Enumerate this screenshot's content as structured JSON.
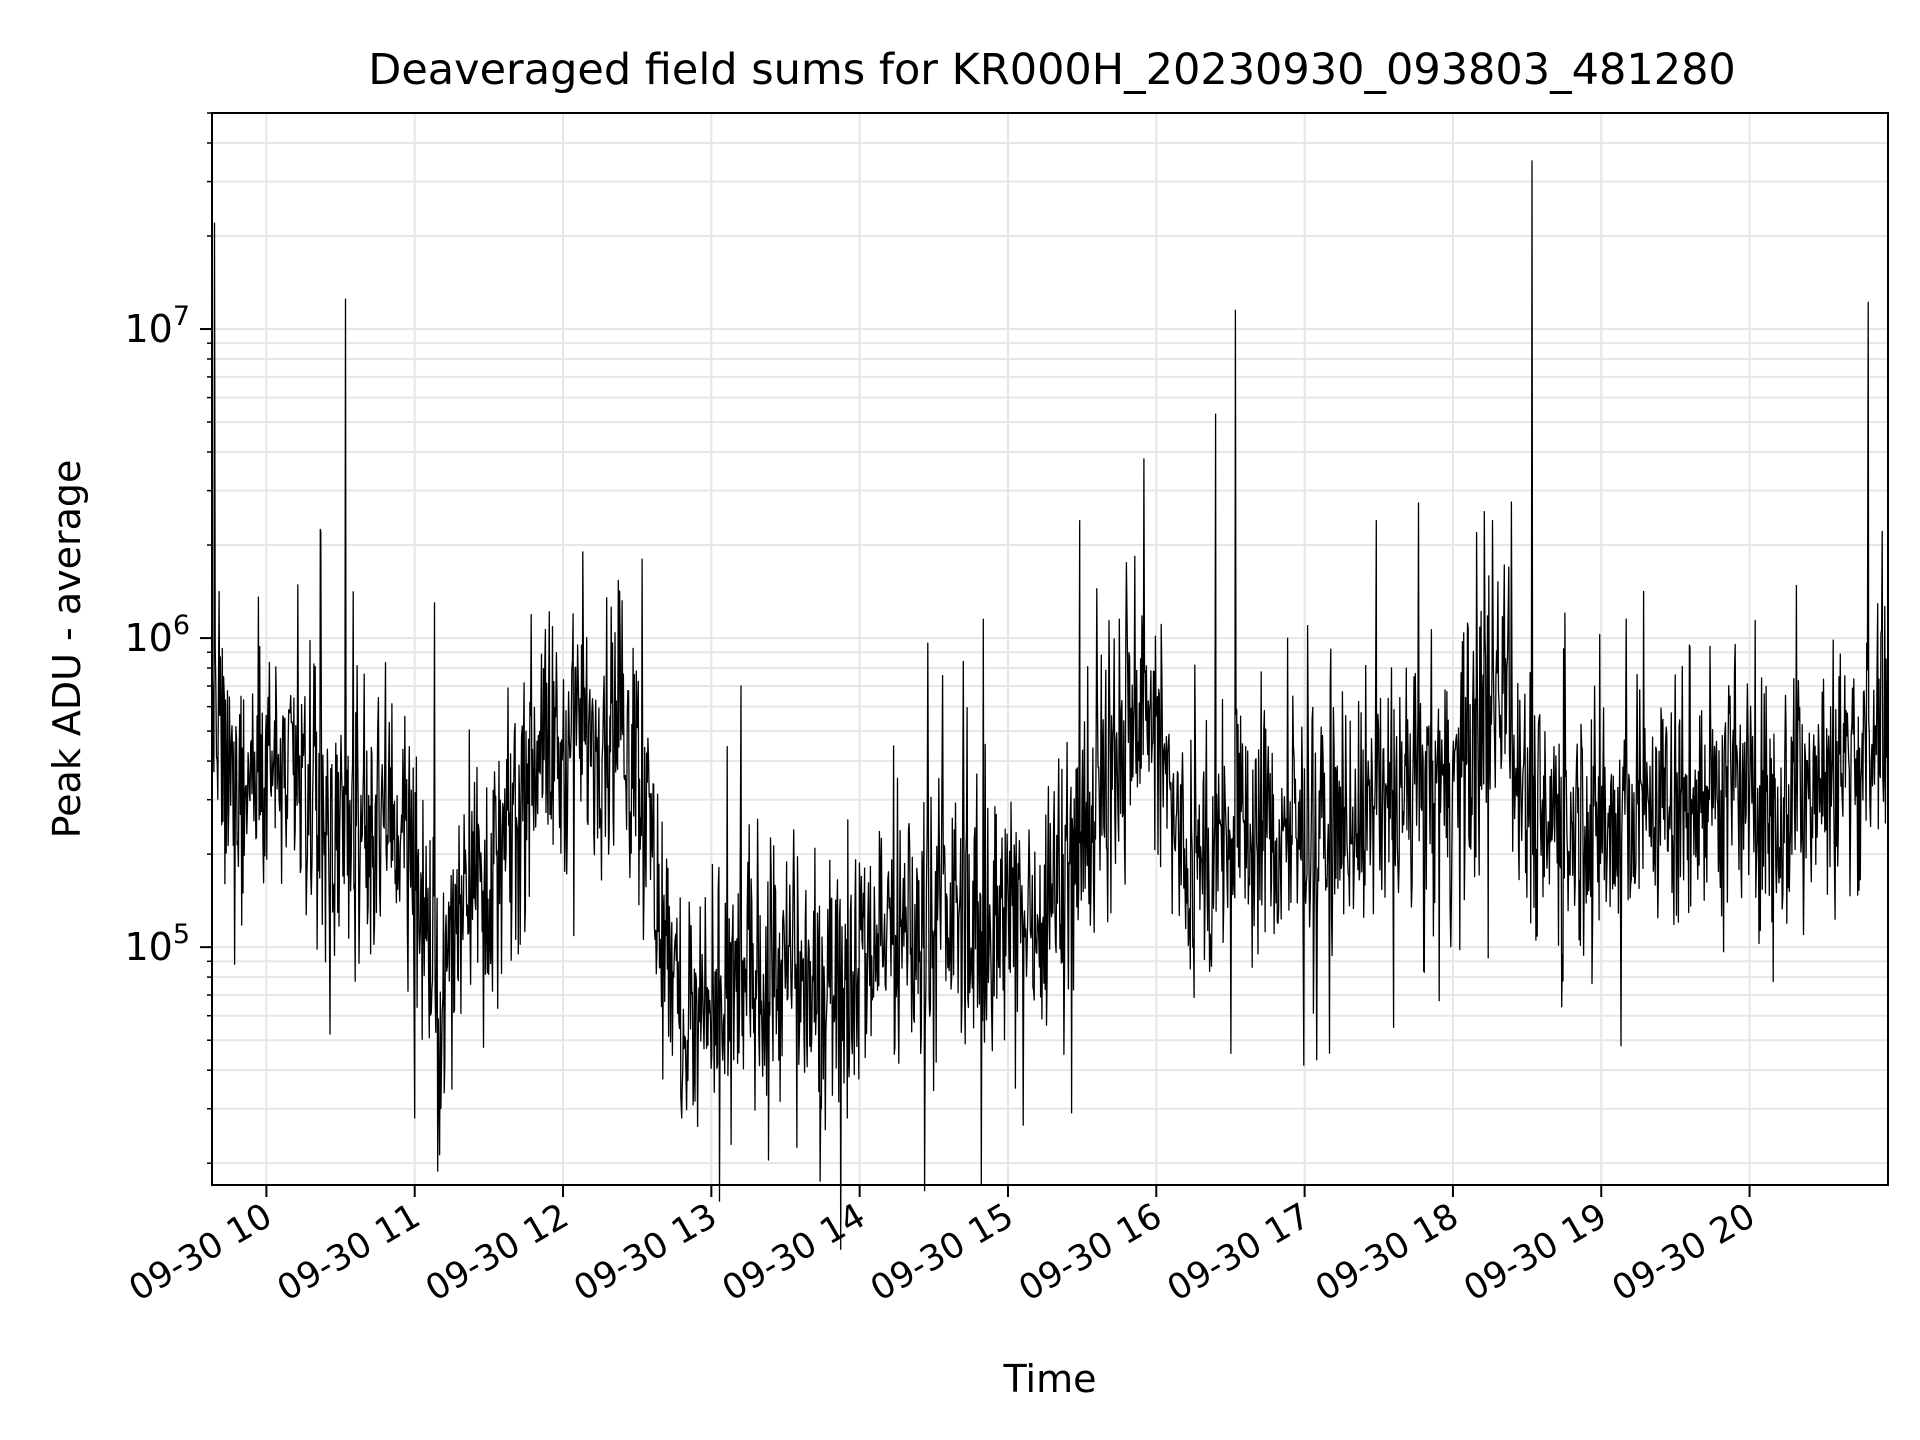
{
  "chart_data": {
    "type": "line",
    "title": "Deaveraged field sums for KR000H_20230930_093803_481280",
    "xlabel": "Time",
    "ylabel": "Peak ADU - average",
    "yscale": "log",
    "ylim": [
      17000,
      50000000
    ],
    "xlim": [
      "2023-09-30 09:38",
      "2023-09-30 20:56"
    ],
    "grid": true,
    "x_ticks": [
      {
        "value": "2023-09-30 10:00",
        "label": "09-30 10"
      },
      {
        "value": "2023-09-30 11:00",
        "label": "09-30 11"
      },
      {
        "value": "2023-09-30 12:00",
        "label": "09-30 12"
      },
      {
        "value": "2023-09-30 13:00",
        "label": "09-30 13"
      },
      {
        "value": "2023-09-30 14:00",
        "label": "09-30 14"
      },
      {
        "value": "2023-09-30 15:00",
        "label": "09-30 15"
      },
      {
        "value": "2023-09-30 16:00",
        "label": "09-30 16"
      },
      {
        "value": "2023-09-30 17:00",
        "label": "09-30 17"
      },
      {
        "value": "2023-09-30 18:00",
        "label": "09-30 18"
      },
      {
        "value": "2023-09-30 19:00",
        "label": "09-30 19"
      },
      {
        "value": "2023-09-30 20:00",
        "label": "09-30 20"
      }
    ],
    "y_ticks": [
      {
        "value": 100000,
        "base": "10",
        "exp": "5"
      },
      {
        "value": 1000000,
        "base": "10",
        "exp": "6"
      },
      {
        "value": 10000000,
        "base": "10",
        "exp": "7"
      }
    ],
    "line_color": "#000000",
    "grid_color": "#e6e6e6",
    "series": [
      {
        "x": [
          "2023-09-30 09:38",
          "2023-09-30 09:45",
          "2023-09-30 09:52",
          "2023-09-30 10:00",
          "2023-09-30 10:10",
          "2023-09-30 10:20",
          "2023-09-30 10:30",
          "2023-09-30 10:40",
          "2023-09-30 10:50",
          "2023-09-30 11:00",
          "2023-09-30 11:10",
          "2023-09-30 11:20",
          "2023-09-30 11:30",
          "2023-09-30 11:40",
          "2023-09-30 11:50",
          "2023-09-30 12:00",
          "2023-09-30 12:10",
          "2023-09-30 12:20",
          "2023-09-30 12:30",
          "2023-09-30 12:40",
          "2023-09-30 12:50",
          "2023-09-30 13:00",
          "2023-09-30 13:10",
          "2023-09-30 13:20",
          "2023-09-30 13:30",
          "2023-09-30 13:40",
          "2023-09-30 13:50",
          "2023-09-30 14:00",
          "2023-09-30 14:10",
          "2023-09-30 14:20",
          "2023-09-30 14:30",
          "2023-09-30 14:40",
          "2023-09-30 14:50",
          "2023-09-30 15:00",
          "2023-09-30 15:10",
          "2023-09-30 15:20",
          "2023-09-30 15:30",
          "2023-09-30 15:40",
          "2023-09-30 15:50",
          "2023-09-30 16:00",
          "2023-09-30 16:10",
          "2023-09-30 16:20",
          "2023-09-30 16:30",
          "2023-09-30 16:40",
          "2023-09-30 16:50",
          "2023-09-30 17:00",
          "2023-09-30 17:10",
          "2023-09-30 17:20",
          "2023-09-30 17:30",
          "2023-09-30 17:40",
          "2023-09-30 17:50",
          "2023-09-30 18:00",
          "2023-09-30 18:10",
          "2023-09-30 18:20",
          "2023-09-30 18:30",
          "2023-09-30 18:40",
          "2023-09-30 18:50",
          "2023-09-30 19:00",
          "2023-09-30 19:10",
          "2023-09-30 19:20",
          "2023-09-30 19:30",
          "2023-09-30 19:40",
          "2023-09-30 19:50",
          "2023-09-30 20:00",
          "2023-09-30 20:10",
          "2023-09-30 20:20",
          "2023-09-30 20:30",
          "2023-09-30 20:40",
          "2023-09-30 20:50",
          "2023-09-30 20:56"
        ],
        "y": [
          500000,
          300000,
          350000,
          400000,
          350000,
          280000,
          250000,
          230000,
          300000,
          200000,
          50000,
          200000,
          160000,
          230000,
          500000,
          400000,
          500000,
          550000,
          400000,
          120000,
          55000,
          50000,
          75000,
          90000,
          80000,
          75000,
          80000,
          100000,
          110000,
          110000,
          120000,
          130000,
          110000,
          120000,
          130000,
          160000,
          220000,
          350000,
          600000,
          500000,
          200000,
          180000,
          210000,
          260000,
          220000,
          230000,
          250000,
          270000,
          280000,
          300000,
          320000,
          330000,
          450000,
          800000,
          300000,
          270000,
          260000,
          240000,
          250000,
          300000,
          290000,
          300000,
          310000,
          300000,
          280000,
          320000,
          350000,
          400000,
          480000,
          520000
        ]
      }
    ],
    "spikes": [
      {
        "x": "2023-09-30 09:39",
        "y": 22000000
      },
      {
        "x": "2023-09-30 10:32",
        "y": 12500000
      },
      {
        "x": "2023-09-30 10:22",
        "y": 2200000
      },
      {
        "x": "2023-09-30 11:08",
        "y": 1300000
      },
      {
        "x": "2023-09-30 12:08",
        "y": 1900000
      },
      {
        "x": "2023-09-30 12:32",
        "y": 1800000
      },
      {
        "x": "2023-09-30 13:12",
        "y": 700000
      },
      {
        "x": "2023-09-30 14:50",
        "y": 1150000
      },
      {
        "x": "2023-09-30 15:29",
        "y": 2400000
      },
      {
        "x": "2023-09-30 15:55",
        "y": 3800000
      },
      {
        "x": "2023-09-30 16:24",
        "y": 5300000
      },
      {
        "x": "2023-09-30 16:32",
        "y": 11500000
      },
      {
        "x": "2023-09-30 17:29",
        "y": 2400000
      },
      {
        "x": "2023-09-30 18:16",
        "y": 2400000
      },
      {
        "x": "2023-09-30 18:32",
        "y": 35000000
      },
      {
        "x": "2023-09-30 20:48",
        "y": 12200000
      }
    ],
    "dips": [
      {
        "x": "2023-09-30 11:00",
        "y": 28000
      },
      {
        "x": "2023-09-30 12:48",
        "y": 28000
      },
      {
        "x": "2023-09-30 13:08",
        "y": 23000
      },
      {
        "x": "2023-09-30 13:55",
        "y": 28000
      },
      {
        "x": "2023-09-30 15:03",
        "y": 35000
      },
      {
        "x": "2023-09-30 17:36",
        "y": 55000
      },
      {
        "x": "2023-09-30 19:08",
        "y": 48000
      }
    ]
  }
}
